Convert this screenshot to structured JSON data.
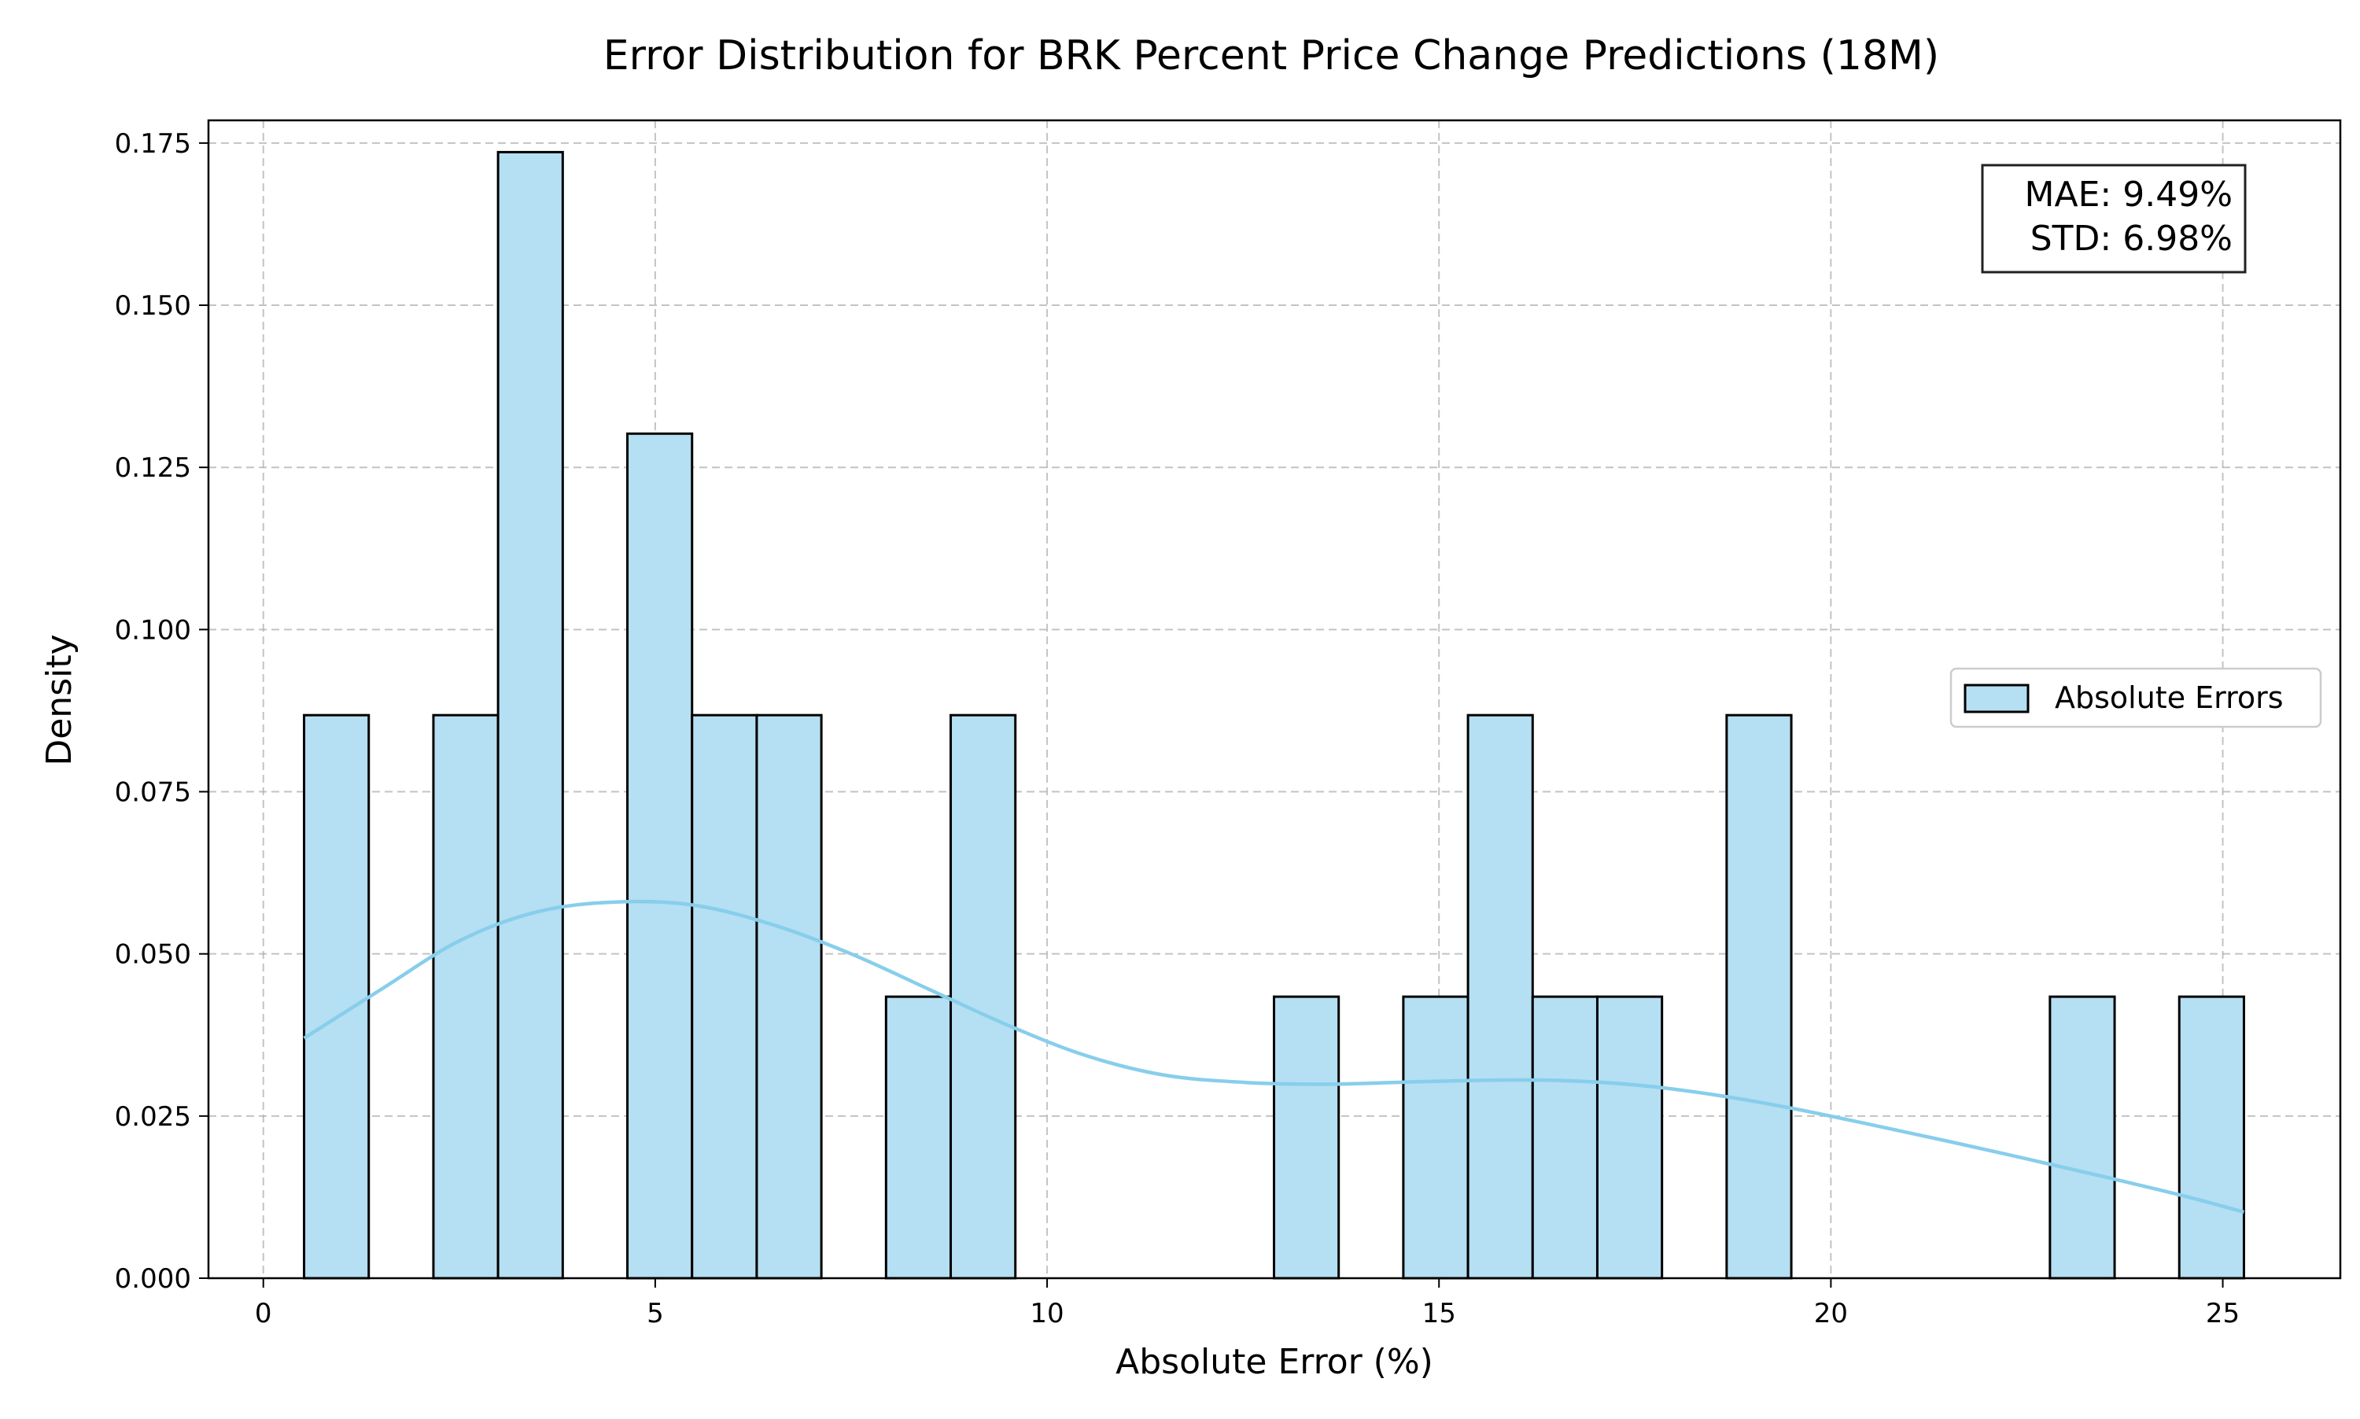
{
  "chart_data": {
    "type": "bar",
    "title": "Error Distribution for BRK Percent Price Change Predictions (18M)",
    "xlabel": "Absolute Error (%)",
    "ylabel": "Density",
    "xlim": [
      -0.7,
      26.5
    ],
    "ylim": [
      0,
      0.1785
    ],
    "xticks": [
      0,
      5,
      10,
      15,
      20,
      25
    ],
    "yticks": [
      0.0,
      0.025,
      0.05,
      0.075,
      0.1,
      0.125,
      0.15,
      0.175
    ],
    "ytick_labels": [
      "0.000",
      "0.025",
      "0.050",
      "0.075",
      "0.100",
      "0.125",
      "0.150",
      "0.175"
    ],
    "grid": true,
    "bin_edges": [
      0.52,
      1.345,
      2.17,
      2.995,
      3.82,
      4.645,
      5.47,
      6.295,
      7.12,
      7.945,
      8.77,
      9.595,
      10.42,
      11.245,
      12.07,
      12.895,
      13.72,
      14.545,
      15.37,
      16.195,
      17.02,
      17.845,
      18.67,
      19.495,
      20.32,
      21.145,
      21.97,
      22.795,
      23.62,
      24.445,
      25.27
    ],
    "densities": [
      0.0868,
      0.0,
      0.0868,
      0.1736,
      0.0,
      0.1302,
      0.0868,
      0.0868,
      0.0,
      0.0434,
      0.0868,
      0.0,
      0.0,
      0.0,
      0.0,
      0.0434,
      0.0,
      0.0434,
      0.0868,
      0.0434,
      0.0434,
      0.0,
      0.0868,
      0.0,
      0.0,
      0.0,
      0.0,
      0.0434,
      0.0,
      0.0434
    ],
    "series": [
      {
        "name": "Absolute Errors",
        "kind": "histogram",
        "color": "#87ceeb"
      },
      {
        "kind": "kde",
        "color": "#87ceeb",
        "x": [
          0.52,
          1.5,
          2.5,
          3.5,
          4.5,
          5.5,
          6.5,
          7.5,
          8.5,
          9.5,
          10.5,
          11.5,
          12.5,
          13.5,
          14.5,
          15.5,
          16.5,
          17.5,
          18.5,
          19.5,
          20.5,
          21.5,
          22.5,
          23.5,
          24.5,
          25.27
        ],
        "y": [
          0.037,
          0.0445,
          0.052,
          0.0565,
          0.058,
          0.0575,
          0.0545,
          0.05,
          0.0445,
          0.039,
          0.0343,
          0.0313,
          0.0302,
          0.0299,
          0.0302,
          0.0305,
          0.0305,
          0.0298,
          0.0283,
          0.0262,
          0.0237,
          0.0211,
          0.0184,
          0.0156,
          0.0127,
          0.0102
        ]
      }
    ],
    "legend": {
      "position": "center-right",
      "entries": [
        "Absolute Errors"
      ]
    },
    "annotations": [
      "MAE: 9.49%",
      "STD: 6.98%"
    ]
  },
  "colors": {
    "bar_fill": "#b5dff2",
    "bar_edge": "#000000",
    "kde_line": "#87ceeb"
  }
}
